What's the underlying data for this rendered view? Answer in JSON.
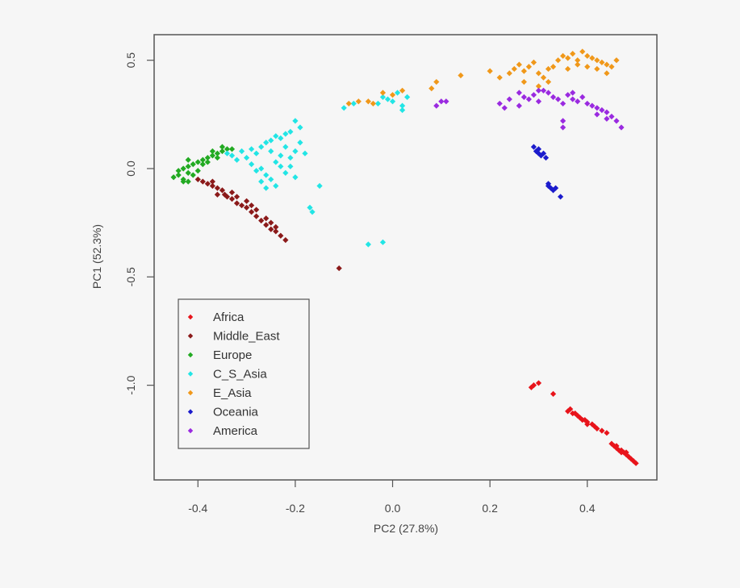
{
  "chart_data": {
    "type": "scatter",
    "title": "",
    "xlabel": "PC2 (27.8%)",
    "ylabel": "PC1 (52.3%)",
    "xlim": [
      -0.49,
      0.543
    ],
    "ylim": [
      -1.437,
      0.618
    ],
    "xticks": [
      -0.4,
      -0.2,
      0.0,
      0.2,
      0.4
    ],
    "xtick_labels": [
      "-0.4",
      "-0.2",
      "0.0",
      "0.2",
      "0.4"
    ],
    "yticks": [
      0.5,
      0.0,
      -0.5,
      -1.0
    ],
    "ytick_labels": [
      "0.5",
      "0.0",
      "-0.5",
      "-1.0"
    ],
    "grid": false,
    "legend_position": "bottom-left",
    "series": [
      {
        "name": "Africa",
        "color": "#e8141b",
        "points": [
          [
            0.29,
            -1.0
          ],
          [
            0.3,
            -0.99
          ],
          [
            0.285,
            -1.01
          ],
          [
            0.33,
            -1.04
          ],
          [
            0.36,
            -1.12
          ],
          [
            0.37,
            -1.13
          ],
          [
            0.365,
            -1.11
          ],
          [
            0.38,
            -1.14
          ],
          [
            0.385,
            -1.15
          ],
          [
            0.39,
            -1.16
          ],
          [
            0.4,
            -1.17
          ],
          [
            0.395,
            -1.16
          ],
          [
            0.41,
            -1.18
          ],
          [
            0.415,
            -1.19
          ],
          [
            0.42,
            -1.2
          ],
          [
            0.43,
            -1.21
          ],
          [
            0.44,
            -1.22
          ],
          [
            0.375,
            -1.13
          ],
          [
            0.4,
            -1.18
          ],
          [
            0.45,
            -1.27
          ],
          [
            0.455,
            -1.28
          ],
          [
            0.46,
            -1.29
          ],
          [
            0.465,
            -1.3
          ],
          [
            0.47,
            -1.3
          ],
          [
            0.475,
            -1.31
          ],
          [
            0.48,
            -1.32
          ],
          [
            0.485,
            -1.33
          ],
          [
            0.49,
            -1.34
          ],
          [
            0.495,
            -1.35
          ],
          [
            0.5,
            -1.36
          ],
          [
            0.46,
            -1.28
          ],
          [
            0.47,
            -1.31
          ],
          [
            0.48,
            -1.31
          ]
        ]
      },
      {
        "name": "Middle_East",
        "color": "#8b1a1a",
        "points": [
          [
            -0.4,
            -0.05
          ],
          [
            -0.39,
            -0.06
          ],
          [
            -0.38,
            -0.07
          ],
          [
            -0.37,
            -0.08
          ],
          [
            -0.36,
            -0.09
          ],
          [
            -0.37,
            -0.06
          ],
          [
            -0.35,
            -0.1
          ],
          [
            -0.345,
            -0.12
          ],
          [
            -0.34,
            -0.13
          ],
          [
            -0.33,
            -0.14
          ],
          [
            -0.32,
            -0.16
          ],
          [
            -0.31,
            -0.17
          ],
          [
            -0.3,
            -0.18
          ],
          [
            -0.29,
            -0.2
          ],
          [
            -0.28,
            -0.22
          ],
          [
            -0.27,
            -0.24
          ],
          [
            -0.26,
            -0.26
          ],
          [
            -0.25,
            -0.28
          ],
          [
            -0.24,
            -0.29
          ],
          [
            -0.23,
            -0.31
          ],
          [
            -0.22,
            -0.33
          ],
          [
            -0.33,
            -0.11
          ],
          [
            -0.32,
            -0.13
          ],
          [
            -0.3,
            -0.15
          ],
          [
            -0.29,
            -0.17
          ],
          [
            -0.28,
            -0.19
          ],
          [
            -0.26,
            -0.23
          ],
          [
            -0.25,
            -0.25
          ],
          [
            -0.24,
            -0.27
          ],
          [
            -0.36,
            -0.12
          ],
          [
            -0.11,
            -0.46
          ]
        ]
      },
      {
        "name": "Europe",
        "color": "#22aa22",
        "points": [
          [
            -0.45,
            -0.04
          ],
          [
            -0.44,
            -0.03
          ],
          [
            -0.43,
            -0.05
          ],
          [
            -0.44,
            -0.01
          ],
          [
            -0.43,
            0.0
          ],
          [
            -0.42,
            0.01
          ],
          [
            -0.42,
            -0.02
          ],
          [
            -0.41,
            0.02
          ],
          [
            -0.4,
            0.03
          ],
          [
            -0.41,
            -0.03
          ],
          [
            -0.4,
            -0.01
          ],
          [
            -0.39,
            0.04
          ],
          [
            -0.38,
            0.05
          ],
          [
            -0.37,
            0.06
          ],
          [
            -0.36,
            0.07
          ],
          [
            -0.35,
            0.08
          ],
          [
            -0.34,
            0.09
          ],
          [
            -0.35,
            0.1
          ],
          [
            -0.37,
            0.08
          ],
          [
            -0.39,
            0.02
          ],
          [
            -0.42,
            0.04
          ],
          [
            -0.43,
            -0.06
          ],
          [
            -0.42,
            -0.06
          ],
          [
            -0.38,
            0.03
          ],
          [
            -0.36,
            0.05
          ],
          [
            -0.33,
            0.09
          ]
        ]
      },
      {
        "name": "C_S_Asia",
        "color": "#22e5e5",
        "points": [
          [
            -0.34,
            0.07
          ],
          [
            -0.33,
            0.06
          ],
          [
            -0.32,
            0.04
          ],
          [
            -0.31,
            0.08
          ],
          [
            -0.3,
            0.05
          ],
          [
            -0.29,
            0.09
          ],
          [
            -0.28,
            0.07
          ],
          [
            -0.27,
            0.1
          ],
          [
            -0.26,
            0.12
          ],
          [
            -0.25,
            0.13
          ],
          [
            -0.24,
            0.15
          ],
          [
            -0.23,
            0.14
          ],
          [
            -0.22,
            0.16
          ],
          [
            -0.21,
            0.17
          ],
          [
            -0.2,
            0.22
          ],
          [
            -0.19,
            0.19
          ],
          [
            -0.29,
            0.02
          ],
          [
            -0.28,
            -0.01
          ],
          [
            -0.27,
            0.0
          ],
          [
            -0.26,
            -0.03
          ],
          [
            -0.25,
            -0.05
          ],
          [
            -0.24,
            0.03
          ],
          [
            -0.23,
            0.01
          ],
          [
            -0.22,
            -0.02
          ],
          [
            -0.21,
            0.05
          ],
          [
            -0.2,
            0.08
          ],
          [
            -0.19,
            0.12
          ],
          [
            -0.25,
            0.08
          ],
          [
            -0.23,
            0.06
          ],
          [
            -0.27,
            -0.06
          ],
          [
            -0.26,
            -0.09
          ],
          [
            -0.24,
            -0.08
          ],
          [
            -0.22,
            0.1
          ],
          [
            -0.21,
            0.01
          ],
          [
            -0.2,
            -0.04
          ],
          [
            -0.18,
            0.07
          ],
          [
            -0.15,
            -0.08
          ],
          [
            -0.17,
            -0.18
          ],
          [
            -0.165,
            -0.2
          ],
          [
            -0.05,
            -0.35
          ],
          [
            -0.02,
            -0.34
          ],
          [
            -0.1,
            0.28
          ],
          [
            -0.08,
            0.3
          ],
          [
            -0.03,
            0.3
          ],
          [
            -0.02,
            0.33
          ],
          [
            -0.01,
            0.32
          ],
          [
            0.0,
            0.31
          ],
          [
            0.01,
            0.35
          ],
          [
            0.02,
            0.29
          ],
          [
            0.03,
            0.33
          ],
          [
            0.02,
            0.27
          ]
        ]
      },
      {
        "name": "E_Asia",
        "color": "#f0981a",
        "points": [
          [
            -0.09,
            0.3
          ],
          [
            -0.07,
            0.31
          ],
          [
            -0.05,
            0.31
          ],
          [
            -0.04,
            0.3
          ],
          [
            -0.02,
            0.35
          ],
          [
            0.0,
            0.34
          ],
          [
            0.02,
            0.36
          ],
          [
            0.08,
            0.37
          ],
          [
            0.09,
            0.4
          ],
          [
            0.14,
            0.43
          ],
          [
            0.2,
            0.45
          ],
          [
            0.22,
            0.42
          ],
          [
            0.24,
            0.44
          ],
          [
            0.25,
            0.46
          ],
          [
            0.26,
            0.48
          ],
          [
            0.27,
            0.45
          ],
          [
            0.28,
            0.47
          ],
          [
            0.29,
            0.49
          ],
          [
            0.3,
            0.44
          ],
          [
            0.31,
            0.42
          ],
          [
            0.32,
            0.4
          ],
          [
            0.33,
            0.47
          ],
          [
            0.34,
            0.5
          ],
          [
            0.35,
            0.52
          ],
          [
            0.36,
            0.51
          ],
          [
            0.37,
            0.53
          ],
          [
            0.38,
            0.5
          ],
          [
            0.39,
            0.54
          ],
          [
            0.4,
            0.52
          ],
          [
            0.41,
            0.51
          ],
          [
            0.42,
            0.5
          ],
          [
            0.43,
            0.49
          ],
          [
            0.44,
            0.48
          ],
          [
            0.45,
            0.47
          ],
          [
            0.36,
            0.46
          ],
          [
            0.38,
            0.48
          ],
          [
            0.4,
            0.47
          ],
          [
            0.42,
            0.46
          ],
          [
            0.3,
            0.38
          ],
          [
            0.46,
            0.5
          ],
          [
            0.44,
            0.44
          ],
          [
            0.32,
            0.46
          ],
          [
            0.27,
            0.4
          ]
        ]
      },
      {
        "name": "Oceania",
        "color": "#1c1ccc",
        "points": [
          [
            0.29,
            0.1
          ],
          [
            0.295,
            0.08
          ],
          [
            0.3,
            0.07
          ],
          [
            0.305,
            0.06
          ],
          [
            0.31,
            0.07
          ],
          [
            0.315,
            0.05
          ],
          [
            0.3,
            0.09
          ],
          [
            0.32,
            -0.08
          ],
          [
            0.325,
            -0.09
          ],
          [
            0.33,
            -0.1
          ],
          [
            0.335,
            -0.09
          ],
          [
            0.32,
            -0.07
          ],
          [
            0.345,
            -0.13
          ]
        ]
      },
      {
        "name": "America",
        "color": "#9a2ae0",
        "points": [
          [
            0.09,
            0.29
          ],
          [
            0.1,
            0.31
          ],
          [
            0.11,
            0.31
          ],
          [
            0.22,
            0.3
          ],
          [
            0.23,
            0.28
          ],
          [
            0.24,
            0.32
          ],
          [
            0.26,
            0.35
          ],
          [
            0.27,
            0.33
          ],
          [
            0.28,
            0.32
          ],
          [
            0.29,
            0.34
          ],
          [
            0.3,
            0.31
          ],
          [
            0.31,
            0.36
          ],
          [
            0.32,
            0.35
          ],
          [
            0.33,
            0.33
          ],
          [
            0.34,
            0.32
          ],
          [
            0.35,
            0.3
          ],
          [
            0.36,
            0.34
          ],
          [
            0.37,
            0.32
          ],
          [
            0.38,
            0.31
          ],
          [
            0.39,
            0.33
          ],
          [
            0.4,
            0.3
          ],
          [
            0.41,
            0.29
          ],
          [
            0.42,
            0.28
          ],
          [
            0.43,
            0.27
          ],
          [
            0.44,
            0.26
          ],
          [
            0.45,
            0.24
          ],
          [
            0.46,
            0.22
          ],
          [
            0.47,
            0.19
          ],
          [
            0.44,
            0.23
          ],
          [
            0.42,
            0.25
          ],
          [
            0.35,
            0.22
          ],
          [
            0.35,
            0.19
          ],
          [
            0.26,
            0.29
          ],
          [
            0.3,
            0.36
          ],
          [
            0.37,
            0.35
          ]
        ]
      }
    ]
  }
}
